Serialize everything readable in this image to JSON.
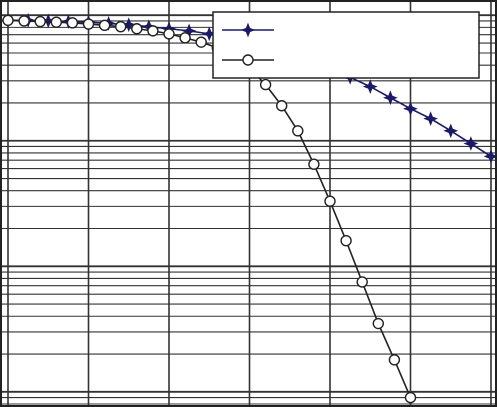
{
  "chart_data": {
    "type": "line",
    "title": "",
    "xlabel": "",
    "ylabel": "",
    "grid": true,
    "y_scale": "log",
    "legend_position": "top-right",
    "series": [
      {
        "name": "",
        "color": "#1a1a66",
        "marker": "star",
        "x": [
          0.0,
          0.25,
          0.5,
          0.75,
          1.0,
          1.25,
          1.5,
          1.75,
          2.0,
          2.25,
          2.5,
          2.75,
          3.0,
          3.25,
          3.5,
          3.75,
          4.0,
          4.25,
          4.5,
          4.75,
          5.0,
          5.25,
          5.5,
          5.75,
          6.0
        ],
        "y": [
          0.91,
          0.91,
          0.9,
          0.89,
          0.88,
          0.86,
          0.84,
          0.81,
          0.78,
          0.75,
          0.71,
          0.66,
          0.61,
          0.56,
          0.5,
          0.44,
          0.38,
          0.32,
          0.27,
          0.22,
          0.18,
          0.15,
          0.12,
          0.095,
          0.075
        ]
      },
      {
        "name": "",
        "color": "#222222",
        "marker": "circle",
        "x": [
          0.0,
          0.2,
          0.4,
          0.6,
          0.8,
          1.0,
          1.2,
          1.4,
          1.6,
          1.8,
          2.0,
          2.2,
          2.4,
          2.6,
          2.8,
          3.0,
          3.2,
          3.4,
          3.6,
          3.8,
          4.0,
          4.2,
          4.4,
          4.6,
          4.8,
          5.0
        ],
        "y": [
          0.91,
          0.9,
          0.89,
          0.88,
          0.87,
          0.85,
          0.83,
          0.81,
          0.78,
          0.75,
          0.71,
          0.66,
          0.61,
          0.55,
          0.47,
          0.38,
          0.28,
          0.19,
          0.12,
          0.065,
          0.033,
          0.016,
          0.0075,
          0.0035,
          0.0018,
          0.0009
        ]
      }
    ],
    "xlim": [
      0,
      6
    ],
    "ylim": [
      0.0008,
      1.1
    ]
  }
}
